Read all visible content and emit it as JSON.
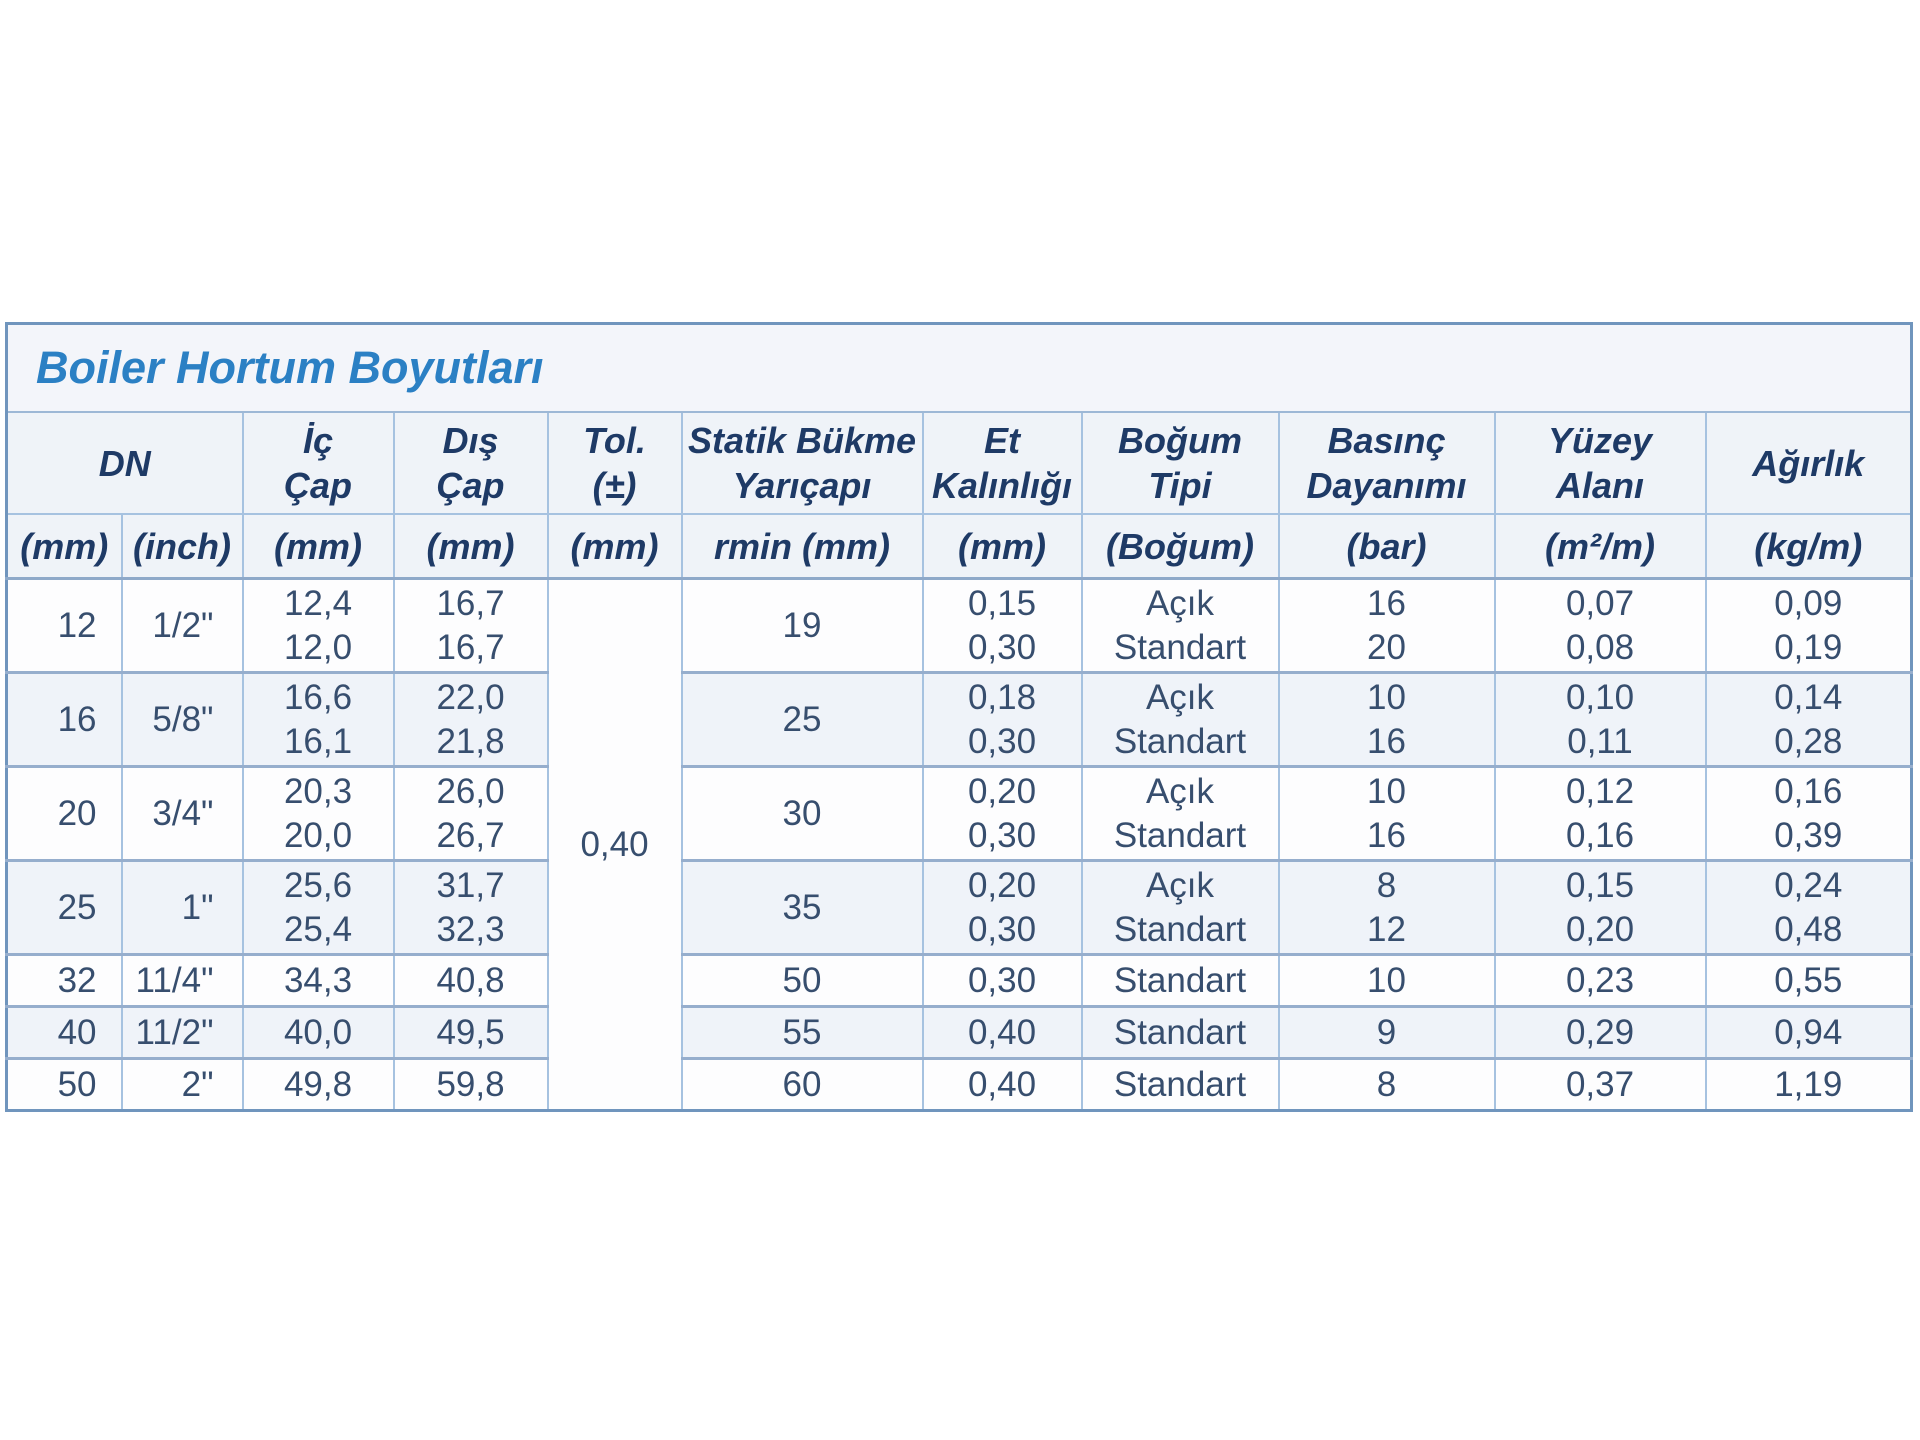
{
  "table": {
    "title": "Boiler Hortum Boyutları",
    "tolerance": "0,40",
    "header": {
      "dn": {
        "label": "DN",
        "unit_mm": "(mm)",
        "unit_inch": "(inch)"
      },
      "ic_cap": {
        "lines": [
          "İç",
          "Çap"
        ],
        "unit": "(mm)"
      },
      "dis_cap": {
        "lines": [
          "Dış",
          "Çap"
        ],
        "unit": "(mm)"
      },
      "tol": {
        "lines": [
          "Tol.",
          "(±)"
        ],
        "unit": "(mm)"
      },
      "statik": {
        "lines": [
          "Statik Bükme",
          "Yarıçapı"
        ],
        "unit": "rmin (mm)"
      },
      "et": {
        "lines": [
          "Et",
          "Kalınlığı"
        ],
        "unit": "(mm)"
      },
      "bogum": {
        "lines": [
          "Boğum",
          "Tipi"
        ],
        "unit": "(Boğum)"
      },
      "basinc": {
        "lines": [
          "Basınç",
          "Dayanımı"
        ],
        "unit": "(bar)"
      },
      "yuzey": {
        "lines": [
          "Yüzey",
          "Alanı"
        ],
        "unit": "(m²/m)"
      },
      "agirlik": {
        "label": "Ağırlık",
        "unit": "(kg/m)"
      }
    },
    "rows": [
      {
        "dn_mm": "12",
        "dn_inch": "1/2\"",
        "ic_cap": [
          "12,4",
          "12,0"
        ],
        "dis_cap": [
          "16,7",
          "16,7"
        ],
        "rmin": "19",
        "et": [
          "0,15",
          "0,30"
        ],
        "bogum": [
          "Açık",
          "Standart"
        ],
        "basinc": [
          "16",
          "20"
        ],
        "yuzey": [
          "0,07",
          "0,08"
        ],
        "agirlik": [
          "0,09",
          "0,19"
        ]
      },
      {
        "dn_mm": "16",
        "dn_inch": "5/8\"",
        "ic_cap": [
          "16,6",
          "16,1"
        ],
        "dis_cap": [
          "22,0",
          "21,8"
        ],
        "rmin": "25",
        "et": [
          "0,18",
          "0,30"
        ],
        "bogum": [
          "Açık",
          "Standart"
        ],
        "basinc": [
          "10",
          "16"
        ],
        "yuzey": [
          "0,10",
          "0,11"
        ],
        "agirlik": [
          "0,14",
          "0,28"
        ]
      },
      {
        "dn_mm": "20",
        "dn_inch": "3/4\"",
        "ic_cap": [
          "20,3",
          "20,0"
        ],
        "dis_cap": [
          "26,0",
          "26,7"
        ],
        "rmin": "30",
        "et": [
          "0,20",
          "0,30"
        ],
        "bogum": [
          "Açık",
          "Standart"
        ],
        "basinc": [
          "10",
          "16"
        ],
        "yuzey": [
          "0,12",
          "0,16"
        ],
        "agirlik": [
          "0,16",
          "0,39"
        ]
      },
      {
        "dn_mm": "25",
        "dn_inch": "1\"",
        "ic_cap": [
          "25,6",
          "25,4"
        ],
        "dis_cap": [
          "31,7",
          "32,3"
        ],
        "rmin": "35",
        "et": [
          "0,20",
          "0,30"
        ],
        "bogum": [
          "Açık",
          "Standart"
        ],
        "basinc": [
          "8",
          "12"
        ],
        "yuzey": [
          "0,15",
          "0,20"
        ],
        "agirlik": [
          "0,24",
          "0,48"
        ]
      },
      {
        "dn_mm": "32",
        "dn_inch": "11/4\"",
        "ic_cap": "34,3",
        "dis_cap": "40,8",
        "rmin": "50",
        "et": "0,30",
        "bogum": "Standart",
        "basinc": "10",
        "yuzey": "0,23",
        "agirlik": "0,55"
      },
      {
        "dn_mm": "40",
        "dn_inch": "11/2\"",
        "ic_cap": "40,0",
        "dis_cap": "49,5",
        "rmin": "55",
        "et": "0,40",
        "bogum": "Standart",
        "basinc": "9",
        "yuzey": "0,29",
        "agirlik": "0,94"
      },
      {
        "dn_mm": "50",
        "dn_inch": "2\"",
        "ic_cap": "49,8",
        "dis_cap": "59,8",
        "rmin": "60",
        "et": "0,40",
        "bogum": "Standart",
        "basinc": "8",
        "yuzey": "0,37",
        "agirlik": "1,19"
      }
    ],
    "colors": {
      "title_blue": "#2b80c4",
      "header_navy": "#1e3a66",
      "data_text": "#374e6e",
      "grid_line": "#a6c2e0",
      "stripe_bg": "#eff3f9"
    }
  }
}
